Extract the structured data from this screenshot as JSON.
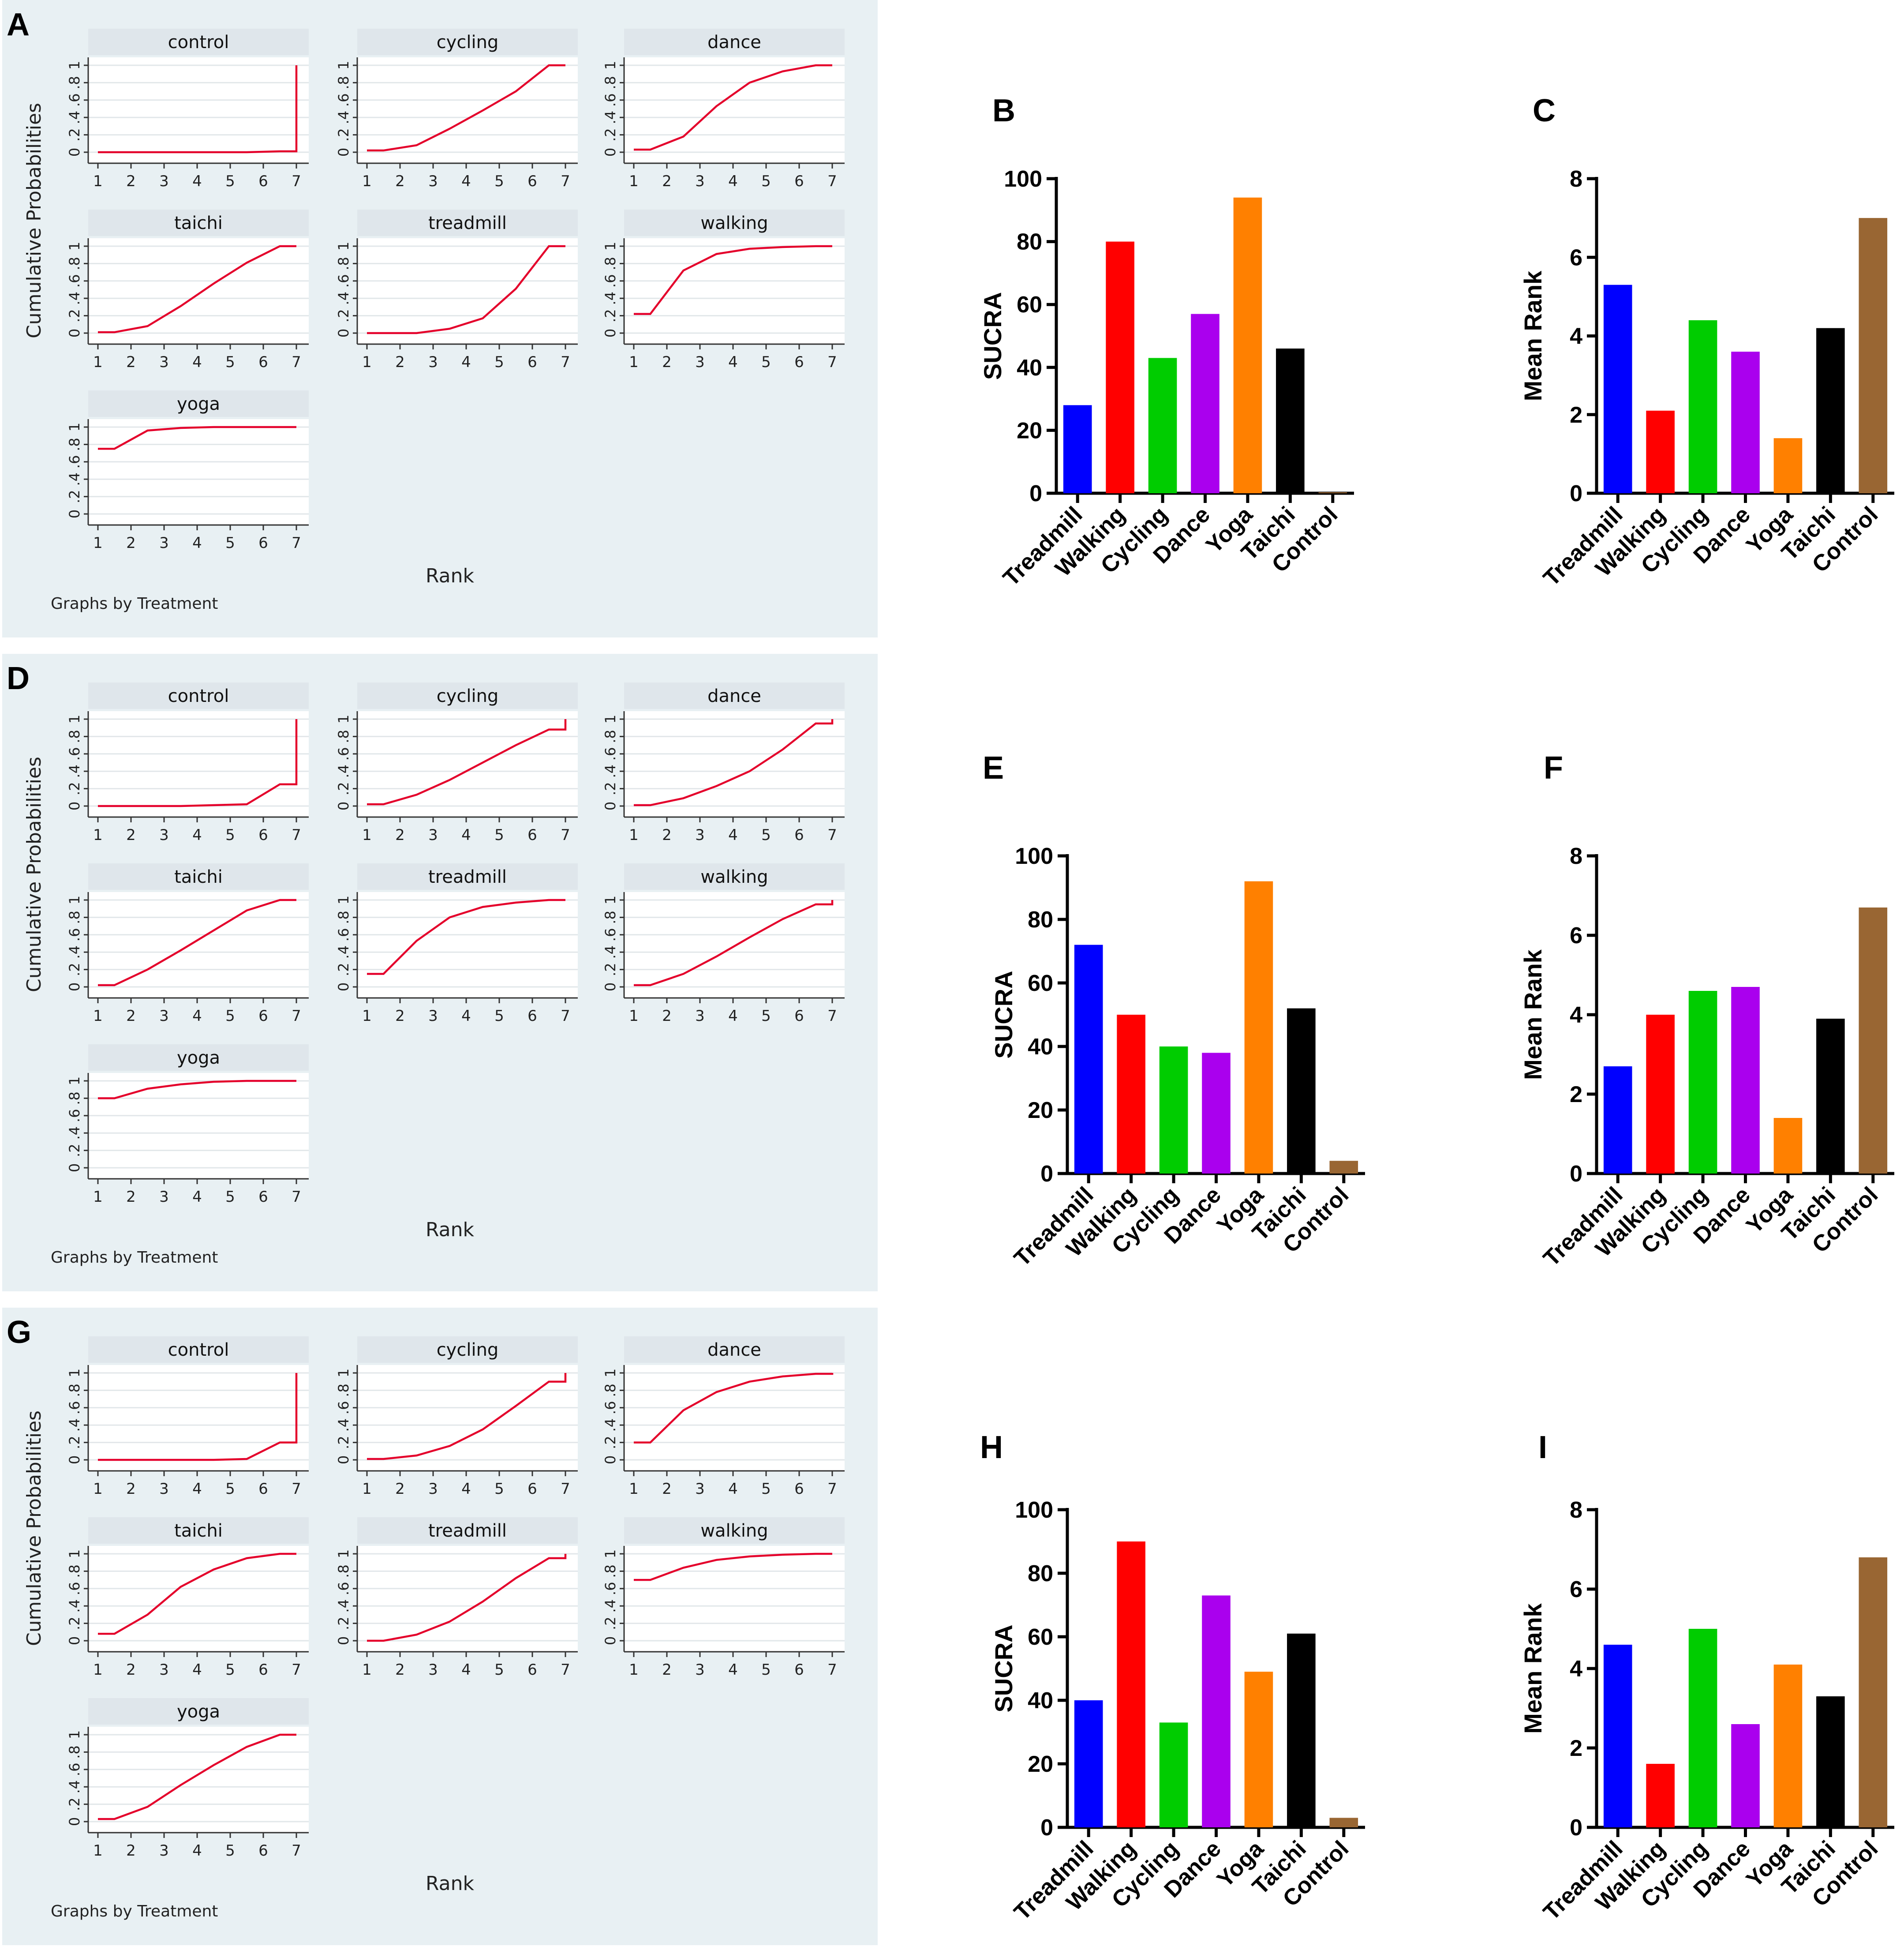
{
  "figure": {
    "colors": {
      "panel_bg": "#e8f0f3",
      "facet_strip": "#dfe6eb",
      "plot_bg": "#ffffff",
      "grid": "#e2e7ea",
      "axis": "#333333",
      "line": "#e4002b",
      "bars": [
        "#0000ff",
        "#ff0000",
        "#00cc00",
        "#aa00ee",
        "#ff8000",
        "#000000",
        "#996633"
      ]
    }
  },
  "chart_data": [
    {
      "panel": "A",
      "type": "line",
      "ylabel": "Cumulative Probabilities",
      "xlabel": "Rank",
      "note": "Graphs by Treatment",
      "x": [
        1,
        2,
        3,
        4,
        5,
        6,
        7
      ],
      "yticks": [
        "0",
        ".2",
        ".4",
        ".6",
        ".8",
        "1"
      ],
      "facets": [
        {
          "name": "control",
          "values": [
            0,
            0,
            0,
            0,
            0,
            0.01,
            1.0
          ],
          "step_at_end": false
        },
        {
          "name": "cycling",
          "values": [
            0.02,
            0.08,
            0.27,
            0.48,
            0.7,
            1.0,
            1.0
          ],
          "step_at_end": false
        },
        {
          "name": "dance",
          "values": [
            0.03,
            0.18,
            0.53,
            0.8,
            0.93,
            1.0,
            1.0
          ],
          "step_at_end": false
        },
        {
          "name": "taichi",
          "values": [
            0.01,
            0.08,
            0.31,
            0.57,
            0.81,
            1.0,
            1.0
          ],
          "step_at_end": false
        },
        {
          "name": "treadmill",
          "values": [
            0,
            0,
            0.05,
            0.17,
            0.51,
            1.0,
            1.0
          ],
          "step_at_end": false
        },
        {
          "name": "walking",
          "values": [
            0.22,
            0.72,
            0.91,
            0.97,
            0.99,
            1.0,
            1.0
          ],
          "step_at_end": false
        },
        {
          "name": "yoga",
          "values": [
            0.75,
            0.96,
            0.99,
            1.0,
            1.0,
            1.0,
            1.0
          ],
          "step_at_end": false
        }
      ]
    },
    {
      "panel": "B",
      "type": "bar",
      "ylabel": "SUCRA",
      "categories": [
        "Treadmill",
        "Walking",
        "Cycling",
        "Dance",
        "Yoga",
        "Taichi",
        "Control"
      ],
      "values": [
        28,
        80,
        43,
        57,
        94,
        46,
        0.3
      ],
      "ylim": [
        0,
        100
      ],
      "yticks": [
        0,
        20,
        40,
        60,
        80,
        100
      ]
    },
    {
      "panel": "C",
      "type": "bar",
      "ylabel": "Mean Rank",
      "categories": [
        "Treadmill",
        "Walking",
        "Cycling",
        "Dance",
        "Yoga",
        "Taichi",
        "Control"
      ],
      "values": [
        5.3,
        2.1,
        4.4,
        3.6,
        1.4,
        4.2,
        7.0
      ],
      "ylim": [
        0,
        8
      ],
      "yticks": [
        0,
        2,
        4,
        6,
        8
      ]
    },
    {
      "panel": "D",
      "type": "line",
      "ylabel": "Cumulative Probabilities",
      "xlabel": "Rank",
      "note": "Graphs by Treatment",
      "x": [
        1,
        2,
        3,
        4,
        5,
        6,
        7
      ],
      "yticks": [
        "0",
        ".2",
        ".4",
        ".6",
        ".8",
        "1"
      ],
      "facets": [
        {
          "name": "control",
          "values": [
            0,
            0,
            0,
            0.01,
            0.02,
            0.25,
            1.0
          ],
          "step_at_end": false
        },
        {
          "name": "cycling",
          "values": [
            0.02,
            0.13,
            0.3,
            0.5,
            0.7,
            0.88,
            1.0
          ],
          "step_at_end": true
        },
        {
          "name": "dance",
          "values": [
            0.01,
            0.09,
            0.23,
            0.4,
            0.65,
            0.95,
            1.0
          ],
          "step_at_end": true
        },
        {
          "name": "taichi",
          "values": [
            0.02,
            0.2,
            0.42,
            0.65,
            0.88,
            1.0,
            1.0
          ],
          "step_at_end": false
        },
        {
          "name": "treadmill",
          "values": [
            0.15,
            0.53,
            0.8,
            0.92,
            0.97,
            1.0,
            1.0
          ],
          "step_at_end": false
        },
        {
          "name": "walking",
          "values": [
            0.02,
            0.15,
            0.35,
            0.57,
            0.78,
            0.95,
            1.0
          ],
          "step_at_end": true
        },
        {
          "name": "yoga",
          "values": [
            0.8,
            0.91,
            0.96,
            0.99,
            1.0,
            1.0,
            1.0
          ],
          "step_at_end": false
        }
      ]
    },
    {
      "panel": "E",
      "type": "bar",
      "ylabel": "SUCRA",
      "categories": [
        "Treadmill",
        "Walking",
        "Cycling",
        "Dance",
        "Yoga",
        "Taichi",
        "Control"
      ],
      "values": [
        72,
        50,
        40,
        38,
        92,
        52,
        4
      ],
      "ylim": [
        0,
        100
      ],
      "yticks": [
        0,
        20,
        40,
        60,
        80,
        100
      ]
    },
    {
      "panel": "F",
      "type": "bar",
      "ylabel": "Mean Rank",
      "categories": [
        "Treadmill",
        "Walking",
        "Cycling",
        "Dance",
        "Yoga",
        "Taichi",
        "Control"
      ],
      "values": [
        2.7,
        4.0,
        4.6,
        4.7,
        1.4,
        3.9,
        6.7
      ],
      "ylim": [
        0,
        8
      ],
      "yticks": [
        0,
        2,
        4,
        6,
        8
      ]
    },
    {
      "panel": "G",
      "type": "line",
      "ylabel": "Cumulative Probabilities",
      "xlabel": "Rank",
      "note": "Graphs by Treatment",
      "x": [
        1,
        2,
        3,
        4,
        5,
        6,
        7
      ],
      "yticks": [
        "0",
        ".2",
        ".4",
        ".6",
        ".8",
        "1"
      ],
      "facets": [
        {
          "name": "control",
          "values": [
            0,
            0,
            0,
            0,
            0.01,
            0.2,
            1.0
          ],
          "step_at_end": false
        },
        {
          "name": "cycling",
          "values": [
            0.01,
            0.05,
            0.16,
            0.35,
            0.62,
            0.9,
            1.0
          ],
          "step_at_end": true
        },
        {
          "name": "dance",
          "values": [
            0.2,
            0.57,
            0.78,
            0.9,
            0.96,
            0.99,
            1.0
          ],
          "step_at_end": false
        },
        {
          "name": "taichi",
          "values": [
            0.08,
            0.3,
            0.62,
            0.82,
            0.95,
            1.0,
            1.0
          ],
          "step_at_end": false
        },
        {
          "name": "treadmill",
          "values": [
            0,
            0.07,
            0.22,
            0.45,
            0.72,
            0.95,
            1.0
          ],
          "step_at_end": true
        },
        {
          "name": "walking",
          "values": [
            0.7,
            0.84,
            0.93,
            0.97,
            0.99,
            1.0,
            1.0
          ],
          "step_at_end": false
        },
        {
          "name": "yoga",
          "values": [
            0.03,
            0.17,
            0.42,
            0.65,
            0.86,
            1.0,
            1.0
          ],
          "step_at_end": true
        }
      ]
    },
    {
      "panel": "H",
      "type": "bar",
      "ylabel": "SUCRA",
      "categories": [
        "Treadmill",
        "Walking",
        "Cycling",
        "Dance",
        "Yoga",
        "Taichi",
        "Control"
      ],
      "values": [
        40,
        90,
        33,
        73,
        49,
        61,
        3
      ],
      "ylim": [
        0,
        100
      ],
      "yticks": [
        0,
        20,
        40,
        60,
        80,
        100
      ]
    },
    {
      "panel": "I",
      "type": "bar",
      "ylabel": "Mean Rank",
      "categories": [
        "Treadmill",
        "Walking",
        "Cycling",
        "Dance",
        "Yoga",
        "Taichi",
        "Control"
      ],
      "values": [
        4.6,
        1.6,
        5.0,
        2.6,
        4.1,
        3.3,
        6.8
      ],
      "ylim": [
        0,
        8
      ],
      "yticks": [
        0,
        2,
        4,
        6,
        8
      ]
    }
  ]
}
